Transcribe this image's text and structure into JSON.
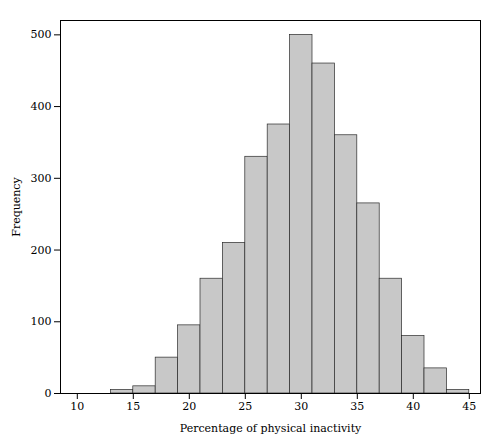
{
  "chart_data": {
    "type": "histogram",
    "bins": [
      13,
      15,
      17,
      19,
      21,
      23,
      25,
      27,
      29,
      31,
      33,
      35,
      37,
      39,
      41,
      43,
      45
    ],
    "values": [
      5,
      10,
      50,
      95,
      160,
      210,
      330,
      375,
      500,
      460,
      360,
      265,
      160,
      80,
      35,
      5
    ],
    "color": "#c8c8c8",
    "xlabel": "Percentage of physical inactivity",
    "ylabel": "Frequency",
    "xlim": [
      8.5,
      46
    ],
    "ylim": [
      0,
      520
    ],
    "xticks": [
      10,
      15,
      20,
      25,
      30,
      35,
      40,
      45
    ],
    "yticks": [
      0,
      100,
      200,
      300,
      400,
      500
    ],
    "grid": false
  }
}
